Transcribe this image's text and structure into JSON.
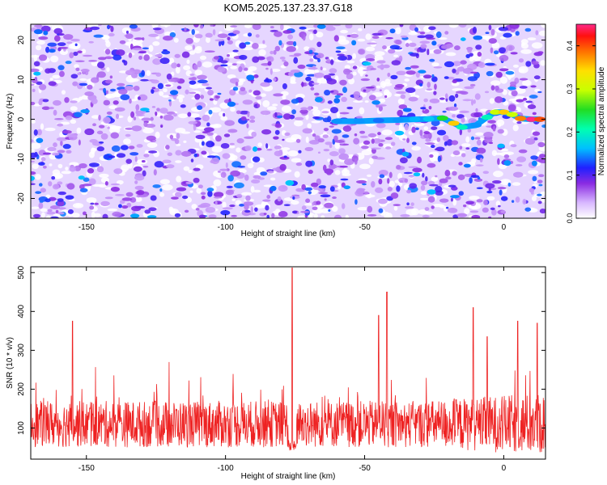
{
  "figure": {
    "title": "KOM5.2025.137.23.37.G18"
  },
  "chart_data": [
    {
      "type": "heatmap",
      "title": "KOM5.2025.137.23.37.G18",
      "xlabel": "Height of straight line (km)",
      "ylabel": "Frequency (Hz)",
      "xlim": [
        -170,
        15
      ],
      "ylim": [
        -25,
        24
      ],
      "xticks": [
        -150,
        -100,
        -50,
        0
      ],
      "yticks": [
        -20,
        -10,
        0,
        10,
        20
      ],
      "colorbar": {
        "label": "Normalized spectral amplitude",
        "range": [
          0.0,
          0.45
        ],
        "ticks": [
          0.0,
          0.1,
          0.2,
          0.3,
          0.4
        ],
        "colormap": "rainbow (white-purple-blue-cyan-green-yellow-orange-red-magenta)"
      },
      "background_level": 0.05,
      "signal_track": {
        "x": [
          -60,
          -52,
          -45,
          -38,
          -32,
          -27,
          -22,
          -18,
          -15,
          -10,
          -6,
          -3,
          0,
          3,
          6,
          10,
          13
        ],
        "y": [
          -0.5,
          -0.5,
          -0.3,
          -0.2,
          0,
          0.1,
          0.3,
          -1.0,
          -2.0,
          -1.5,
          0.5,
          1.8,
          1.8,
          1.2,
          0.2,
          0,
          0
        ],
        "amplitude": [
          0.15,
          0.15,
          0.14,
          0.15,
          0.16,
          0.17,
          0.25,
          0.35,
          0.2,
          0.15,
          0.2,
          0.3,
          0.35,
          0.3,
          0.38,
          0.45,
          0.4
        ]
      }
    },
    {
      "type": "line",
      "xlabel": "Height of straight line (km)",
      "ylabel": "SNR (10 * v/v)",
      "xlim": [
        -170,
        15
      ],
      "ylim": [
        20,
        515
      ],
      "xticks": [
        -150,
        -100,
        -50,
        0
      ],
      "yticks": [
        100,
        200,
        300,
        400,
        500
      ],
      "series_color": "#ee2222",
      "baseline_mean": 110,
      "peaks": [
        {
          "x": -155,
          "y": 375
        },
        {
          "x": -76,
          "y": 512
        },
        {
          "x": -42,
          "y": 450
        },
        {
          "x": -45,
          "y": 390
        },
        {
          "x": -11,
          "y": 410
        },
        {
          "x": -6,
          "y": 335
        },
        {
          "x": 5,
          "y": 375
        },
        {
          "x": 12,
          "y": 370
        }
      ]
    }
  ],
  "colors": {
    "axis": "#000000",
    "line": "#ee2222"
  }
}
